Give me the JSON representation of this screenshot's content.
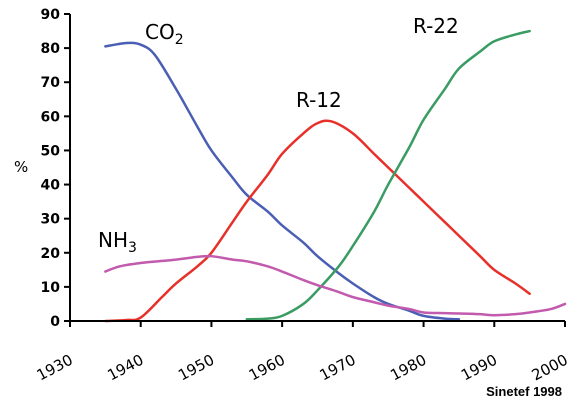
{
  "chart_data": {
    "type": "line",
    "ylabel": "%",
    "xlim": [
      1930,
      2000
    ],
    "ylim": [
      0,
      90
    ],
    "x_ticks": [
      "1930",
      "1940",
      "1950",
      "1960",
      "1970",
      "1980",
      "1990",
      "2000"
    ],
    "y_ticks": [
      "0",
      "10",
      "20",
      "30",
      "40",
      "50",
      "60",
      "70",
      "80",
      "90"
    ],
    "grid": false,
    "source": "Sinetef 1998",
    "series": [
      {
        "name": "CO",
        "name_sub": "2",
        "color": "#4a5fb4",
        "points": [
          [
            1935,
            80.5
          ],
          [
            1938,
            81.5
          ],
          [
            1940,
            81
          ],
          [
            1942,
            78
          ],
          [
            1945,
            68
          ],
          [
            1948,
            57
          ],
          [
            1950,
            50
          ],
          [
            1953,
            42
          ],
          [
            1955,
            37
          ],
          [
            1958,
            32
          ],
          [
            1960,
            28
          ],
          [
            1963,
            23
          ],
          [
            1965,
            19
          ],
          [
            1968,
            14
          ],
          [
            1970,
            11
          ],
          [
            1973,
            7
          ],
          [
            1975,
            5
          ],
          [
            1978,
            3
          ],
          [
            1980,
            1.5
          ],
          [
            1983,
            0.7
          ],
          [
            1985,
            0.5
          ]
        ]
      },
      {
        "name": "R-12",
        "color": "#e8302a",
        "points": [
          [
            1935,
            0
          ],
          [
            1938,
            0.3
          ],
          [
            1940,
            1
          ],
          [
            1943,
            7
          ],
          [
            1945,
            11
          ],
          [
            1948,
            16
          ],
          [
            1950,
            20
          ],
          [
            1953,
            29
          ],
          [
            1955,
            35
          ],
          [
            1958,
            43
          ],
          [
            1960,
            49
          ],
          [
            1963,
            55
          ],
          [
            1965,
            58
          ],
          [
            1967,
            58.5
          ],
          [
            1970,
            55
          ],
          [
            1973,
            49
          ],
          [
            1975,
            45
          ],
          [
            1978,
            39
          ],
          [
            1980,
            35
          ],
          [
            1983,
            29
          ],
          [
            1985,
            25
          ],
          [
            1988,
            19
          ],
          [
            1990,
            15
          ],
          [
            1993,
            11
          ],
          [
            1995,
            8
          ]
        ]
      },
      {
        "name": "R-22",
        "color": "#3a9c62",
        "points": [
          [
            1955,
            0.5
          ],
          [
            1958,
            0.7
          ],
          [
            1960,
            1.5
          ],
          [
            1963,
            5
          ],
          [
            1965,
            9
          ],
          [
            1968,
            16
          ],
          [
            1970,
            22
          ],
          [
            1973,
            32
          ],
          [
            1975,
            40
          ],
          [
            1978,
            51
          ],
          [
            1980,
            59
          ],
          [
            1983,
            68
          ],
          [
            1985,
            74
          ],
          [
            1988,
            79
          ],
          [
            1990,
            82
          ],
          [
            1993,
            84
          ],
          [
            1995,
            85
          ]
        ]
      },
      {
        "name": "NH",
        "name_sub": "3",
        "color": "#c25aae",
        "points": [
          [
            1935,
            14.5
          ],
          [
            1937,
            16
          ],
          [
            1940,
            17
          ],
          [
            1945,
            18
          ],
          [
            1948,
            18.8
          ],
          [
            1950,
            19
          ],
          [
            1953,
            18
          ],
          [
            1955,
            17.5
          ],
          [
            1958,
            16
          ],
          [
            1960,
            14.5
          ],
          [
            1963,
            12
          ],
          [
            1965,
            10.5
          ],
          [
            1968,
            8.5
          ],
          [
            1970,
            7
          ],
          [
            1973,
            5.5
          ],
          [
            1975,
            4.5
          ],
          [
            1978,
            3.5
          ],
          [
            1980,
            2.5
          ],
          [
            1983,
            2.3
          ],
          [
            1985,
            2.2
          ],
          [
            1988,
            2
          ],
          [
            1990,
            1.7
          ],
          [
            1993,
            2
          ],
          [
            1995,
            2.5
          ],
          [
            1998,
            3.5
          ],
          [
            2000,
            5
          ]
        ]
      }
    ]
  }
}
